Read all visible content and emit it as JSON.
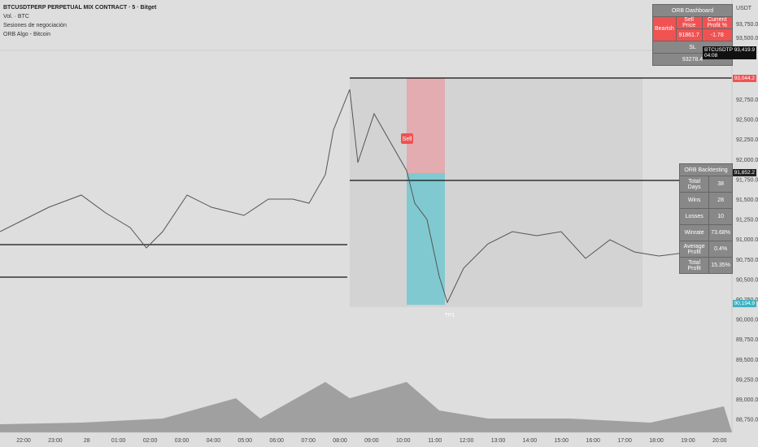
{
  "header": {
    "title": "BTCUSDTPERP PERPETUAL MIX CONTRACT · 5 · Bitget",
    "indicators": [
      "Vol. · BTC",
      "Sesiones de negociación",
      "ORB Algo - Bitcoin"
    ]
  },
  "price_axis": {
    "currency": "USDT",
    "labels": [
      "93,750.0",
      "93,500.0",
      "92,750.0",
      "92,500.0",
      "92,250.0",
      "92,000.0",
      "91,750.0",
      "91,500.0",
      "91,250.0",
      "91,000.0",
      "90,750.0",
      "90,500.0",
      "90,250.0",
      "90,000.0",
      "89,750.0",
      "89,500.0",
      "89,250.0",
      "89,000.0",
      "88,750.0"
    ],
    "tags": {
      "symbol": "BTCUSDTP",
      "last": "93,419.9",
      "countdown": "04:08",
      "orb_high": "93,044.2",
      "orb_low": "91,852.2",
      "tp": "90,194.9"
    }
  },
  "time_axis": {
    "labels": [
      "22:00",
      "23:00",
      "28",
      "01:00",
      "02:00",
      "03:00",
      "04:00",
      "05:00",
      "06:00",
      "07:00",
      "08:00",
      "09:00",
      "10:00",
      "11:00",
      "12:00",
      "13:00",
      "14:00",
      "15:00",
      "16:00",
      "17:00",
      "18:00",
      "19:00",
      "20:00"
    ]
  },
  "chart_labels": {
    "sell": "Sell",
    "tp": "TP1"
  },
  "dashboard": {
    "title": "ORB Dashboard",
    "direction": "Bearish",
    "headers": [
      "Sell Price",
      "Current Profit %"
    ],
    "values": [
      "91861.7",
      "-1.78"
    ],
    "sl_label": "SL",
    "sl_value": "93278.4"
  },
  "backtesting": {
    "title": "ORB Backtesting",
    "rows": [
      [
        "Total Days",
        "38"
      ],
      [
        "Wins",
        "28"
      ],
      [
        "Losses",
        "10"
      ],
      [
        "Winrate",
        "73.68%"
      ],
      [
        "Average Profit",
        "0.4%"
      ],
      [
        "Total Profit",
        "15.35%"
      ]
    ]
  }
}
